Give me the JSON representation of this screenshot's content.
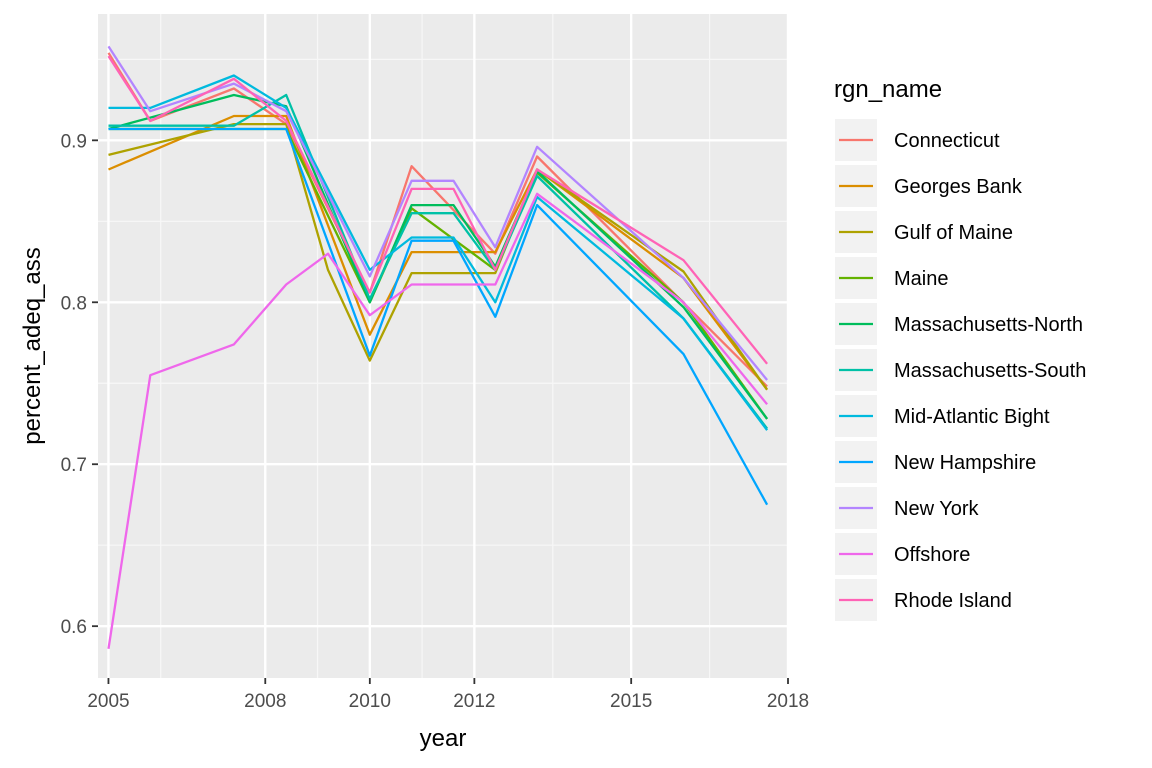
{
  "chart_data": {
    "type": "line",
    "xlabel": "year",
    "ylabel": "percent_adeq_ass",
    "legend_title": "rgn_name",
    "legend_position": "right",
    "grid": true,
    "xlim": [
      2004.8,
      2018.0
    ],
    "ylim": [
      0.568,
      0.978
    ],
    "x_ticks": [
      {
        "value": 2005.0,
        "label": "2005"
      },
      {
        "value": 2008.0,
        "label": "2008"
      },
      {
        "value": 2010.0,
        "label": "2010"
      },
      {
        "value": 2012.0,
        "label": "2012"
      },
      {
        "value": 2015.0,
        "label": "2015"
      },
      {
        "value": 2018.0,
        "label": "2018"
      }
    ],
    "x_minor_ticks": [
      2006.0,
      2009.0,
      2011.0,
      2013.5,
      2016.5
    ],
    "y_ticks": [
      {
        "value": 0.6,
        "label": "0.6"
      },
      {
        "value": 0.7,
        "label": "0.7"
      },
      {
        "value": 0.8,
        "label": "0.8"
      },
      {
        "value": 0.9,
        "label": "0.9"
      }
    ],
    "y_minor_ticks": [
      0.65,
      0.75,
      0.85,
      0.95
    ],
    "x": [
      2005.0,
      2005.8,
      2007.4,
      2008.4,
      2009.2,
      2010.0,
      2010.8,
      2011.6,
      2012.4,
      2013.2,
      2014.0,
      2016.0,
      2017.6
    ],
    "series": [
      {
        "name": "Connecticut",
        "color": "#F8766D",
        "values": [
          0.954,
          0.912,
          0.932,
          0.91,
          null,
          0.806,
          0.884,
          null,
          0.83,
          0.89,
          null,
          null,
          0.748
        ]
      },
      {
        "name": "Georges Bank",
        "color": "#DB8E00",
        "values": [
          0.882,
          null,
          0.915,
          0.915,
          null,
          0.78,
          0.831,
          0.831,
          0.831,
          0.882,
          null,
          0.815,
          0.746
        ]
      },
      {
        "name": "Gulf of Maine",
        "color": "#AEA200",
        "values": [
          0.891,
          null,
          0.91,
          0.91,
          0.82,
          0.764,
          0.818,
          0.818,
          0.818,
          0.882,
          null,
          0.819,
          0.746
        ]
      },
      {
        "name": "Maine",
        "color": "#64B200",
        "values": [
          0.907,
          null,
          0.907,
          0.907,
          null,
          0.8,
          0.858,
          null,
          0.82,
          0.88,
          null,
          0.8,
          0.728
        ]
      },
      {
        "name": "Massachusetts-North",
        "color": "#00BD5C",
        "values": [
          0.907,
          null,
          0.928,
          0.921,
          null,
          0.8,
          0.86,
          0.86,
          0.822,
          0.881,
          null,
          0.797,
          0.728
        ]
      },
      {
        "name": "Massachusetts-South",
        "color": "#00C1A7",
        "values": [
          0.909,
          null,
          0.909,
          0.928,
          null,
          0.802,
          0.855,
          0.855,
          0.82,
          0.878,
          null,
          0.79,
          0.722
        ]
      },
      {
        "name": "Mid-Atlantic Bight",
        "color": "#00BADE",
        "values": [
          0.92,
          0.92,
          0.94,
          0.92,
          null,
          0.82,
          0.84,
          0.84,
          0.8,
          0.865,
          null,
          0.79,
          0.721
        ]
      },
      {
        "name": "New Hampshire",
        "color": "#00A6FF",
        "values": [
          0.907,
          null,
          0.907,
          0.907,
          null,
          0.767,
          0.838,
          0.838,
          0.791,
          0.86,
          null,
          0.768,
          0.675
        ]
      },
      {
        "name": "New York",
        "color": "#B385FF",
        "values": [
          0.958,
          0.918,
          0.935,
          0.918,
          null,
          0.816,
          0.875,
          0.875,
          0.834,
          0.896,
          null,
          0.815,
          0.752
        ]
      },
      {
        "name": "Offshore",
        "color": "#EF67EB",
        "values": [
          0.586,
          0.755,
          0.774,
          0.811,
          0.83,
          0.792,
          0.811,
          0.811,
          0.811,
          0.867,
          null,
          0.8,
          0.737
        ]
      },
      {
        "name": "Rhode Island",
        "color": "#FF63B6",
        "values": [
          0.952,
          0.912,
          0.938,
          0.912,
          null,
          0.806,
          0.87,
          0.87,
          0.82,
          0.882,
          null,
          0.826,
          0.762
        ]
      }
    ]
  }
}
